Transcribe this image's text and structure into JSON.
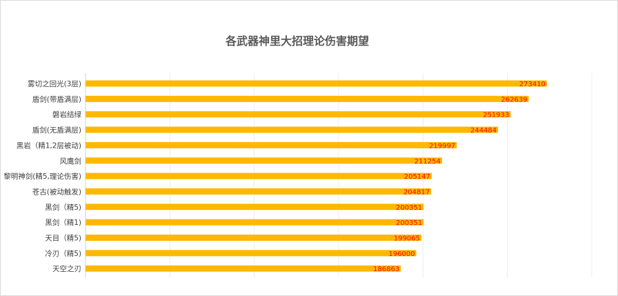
{
  "chart_data": {
    "type": "bar",
    "orientation": "horizontal",
    "title": "各武器神里大招理论伤害期望",
    "categories": [
      "雾切之回光(3层)",
      "盾剑(带盾满层)",
      "磐岩结绿",
      "盾剑(无盾满层)",
      "黑岩（精1,2层被动)",
      "风鹰剑",
      "黎明神剑(精5,理论伤害)",
      "苍古(被动触发)",
      "黑剑（精5)",
      "黑剑（精1)",
      "天目（精5)",
      "冷刃（精5)",
      "天空之刃"
    ],
    "values": [
      273410,
      262639,
      251933,
      244484,
      219997,
      211254,
      205147,
      204817,
      200351,
      200351,
      199065,
      196000,
      186863
    ],
    "data_labels": [
      "273410",
      "262639",
      "251933",
      "244484",
      "219997",
      "211254",
      "205147",
      "204817",
      "200351",
      "200351",
      "199065",
      "196000",
      "186863"
    ],
    "xlim": [
      0,
      300000
    ],
    "grid": true,
    "legend": "none",
    "bar_color": "#FFB800",
    "label_color": "#FF0000"
  }
}
